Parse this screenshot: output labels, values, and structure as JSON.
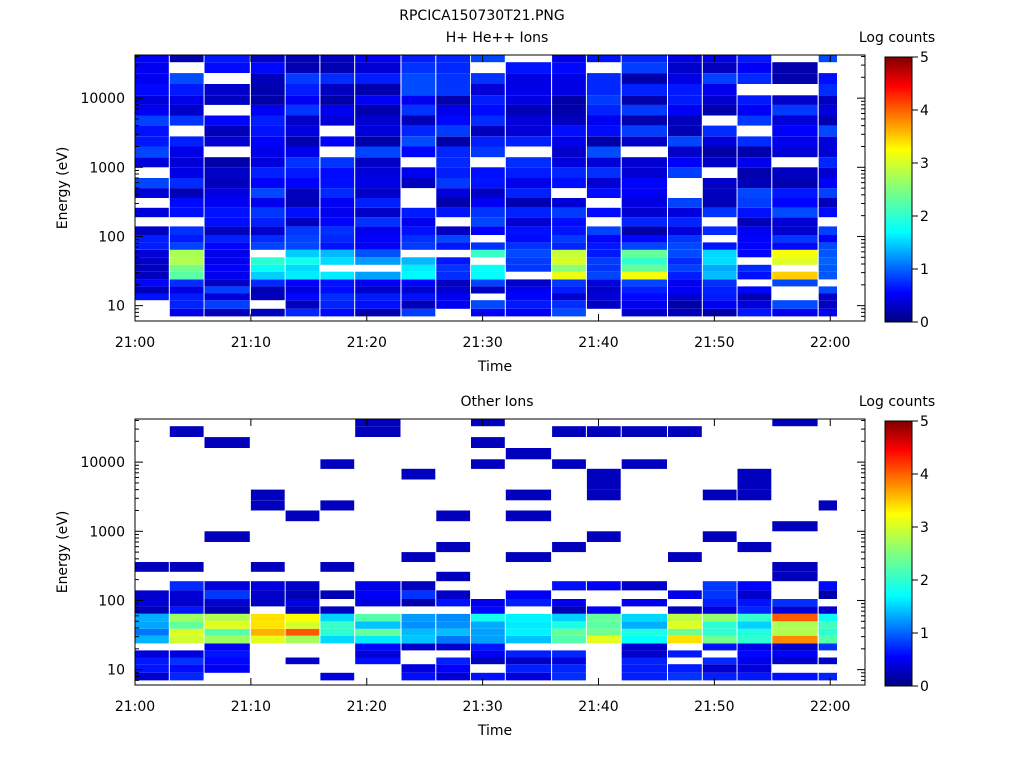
{
  "figure": {
    "title": "RPCICA150730T21.PNG"
  },
  "colorbar": {
    "title": "Log counts",
    "ticks": [
      "0",
      "1",
      "2",
      "3",
      "4",
      "5"
    ],
    "range": [
      0,
      5
    ],
    "colormap": "jet"
  },
  "chart_data": [
    {
      "type": "heatmap",
      "title": "H+ He++ Ions",
      "xlabel": "Time",
      "ylabel": "Energy (eV)",
      "y_scale": "log",
      "ylim": [
        6,
        42000
      ],
      "xlim": [
        "21:00",
        "22:03"
      ],
      "x_ticks": [
        "21:00",
        "21:10",
        "21:20",
        "21:30",
        "21:40",
        "21:50",
        "22:00"
      ],
      "y_ticks": [
        "10",
        "100",
        "1000",
        "10000"
      ],
      "time_bins": [
        "21:00",
        "21:03",
        "21:06",
        "21:10",
        "21:13",
        "21:16",
        "21:19",
        "21:23",
        "21:26",
        "21:29",
        "21:32",
        "21:36",
        "21:39",
        "21:42",
        "21:46",
        "21:49",
        "21:52",
        "21:55",
        "21:59"
      ],
      "energy_bins_eV": [
        7,
        9,
        12,
        15,
        19,
        24,
        31,
        39,
        50,
        64,
        82,
        105,
        140,
        190,
        260,
        360,
        500,
        700,
        1000,
        1400,
        2000,
        2800,
        4000,
        5600,
        8000,
        11000,
        16000,
        23000,
        33000,
        42000
      ],
      "value_label": "Log counts",
      "z_range": [
        0,
        5
      ],
      "low_energy_peak_log_counts": [
        0.4,
        2.6,
        0.6,
        1.9,
        2.1,
        2.0,
        1.3,
        1.8,
        0.8,
        2.0,
        1.0,
        2.8,
        0.9,
        2.8,
        1.0,
        1.9,
        0.8,
        3.6,
        1.2
      ],
      "background_log_counts": 0.6
    },
    {
      "type": "heatmap",
      "title": "Other Ions",
      "xlabel": "Time",
      "ylabel": "Energy (eV)",
      "y_scale": "log",
      "ylim": [
        6,
        42000
      ],
      "xlim": [
        "21:00",
        "22:03"
      ],
      "x_ticks": [
        "21:00",
        "21:10",
        "21:20",
        "21:30",
        "21:40",
        "21:50",
        "22:00"
      ],
      "y_ticks": [
        "10",
        "100",
        "1000",
        "10000"
      ],
      "time_bins": [
        "21:00",
        "21:03",
        "21:06",
        "21:10",
        "21:13",
        "21:16",
        "21:19",
        "21:23",
        "21:26",
        "21:29",
        "21:32",
        "21:36",
        "21:39",
        "21:42",
        "21:46",
        "21:49",
        "21:52",
        "21:55",
        "21:59"
      ],
      "energy_bins_eV": [
        7,
        9,
        12,
        15,
        19,
        24,
        31,
        39,
        50,
        64,
        82,
        105,
        140,
        190,
        260,
        360,
        500,
        700,
        1000,
        1400,
        2000,
        2800,
        4000,
        5600,
        8000,
        11000,
        16000,
        23000,
        33000,
        42000
      ],
      "value_label": "Log counts",
      "z_range": [
        0,
        5
      ],
      "low_energy_peak_log_counts": [
        1.5,
        3.0,
        2.8,
        3.4,
        3.7,
        2.2,
        2.2,
        1.8,
        1.6,
        2.0,
        2.0,
        2.3,
        2.8,
        1.9,
        3.2,
        2.6,
        2.0,
        3.6,
        2.3
      ],
      "background_log_counts": 0.3
    }
  ]
}
